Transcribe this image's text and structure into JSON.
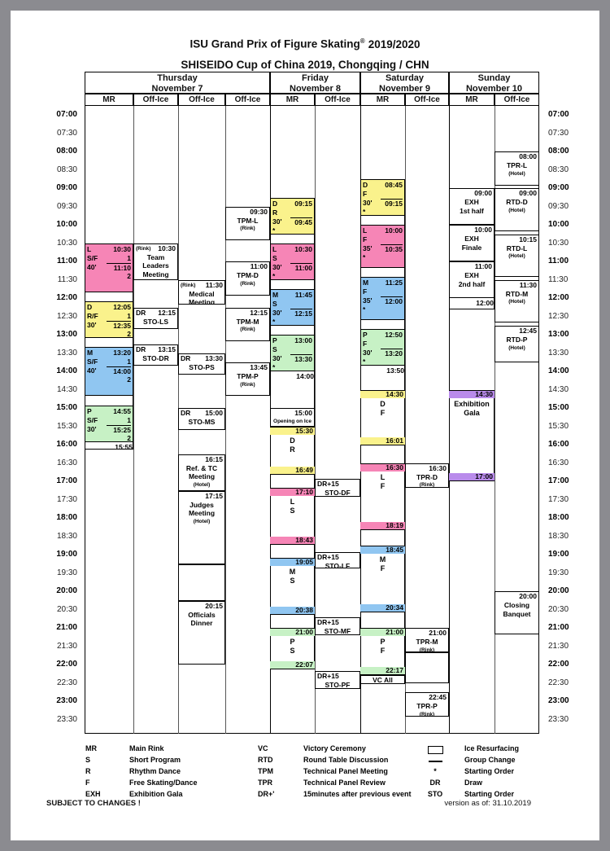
{
  "titles": {
    "line1_main": "ISU Grand Prix of Figure Skating",
    "line1_reg": "®",
    "line1_season": "2019/2020",
    "line2": "SHISEIDO Cup of China 2019, Chongqing / CHN"
  },
  "footer": {
    "left": "SUBJECT TO CHANGES !",
    "right": "version as of: 31.10.2019"
  },
  "colors": {
    "dance": "#faf28c",
    "ladies": "#f685b6",
    "men": "#90c6f1",
    "pairs": "#c7f1c5",
    "gala": "#b98beb"
  },
  "days": [
    {
      "name": "Thursday",
      "date": "November 7",
      "cols": [
        "MR",
        "Off-Ice",
        "Off-Ice",
        "Off-Ice"
      ]
    },
    {
      "name": "Friday",
      "date": "November 8",
      "cols": [
        "MR",
        "Off-Ice"
      ]
    },
    {
      "name": "Saturday",
      "date": "November 9",
      "cols": [
        "MR",
        "Off-Ice"
      ]
    },
    {
      "name": "Sunday",
      "date": "November 10",
      "cols": [
        "MR",
        "Off-Ice"
      ]
    }
  ],
  "time_labels": [
    "07:00",
    "07:30",
    "08:00",
    "08:30",
    "09:00",
    "09:30",
    "10:00",
    "10:30",
    "11:00",
    "11:30",
    "12:00",
    "12:30",
    "13:00",
    "13:30",
    "14:00",
    "14:30",
    "15:00",
    "15:30",
    "16:00",
    "16:30",
    "17:00",
    "17:30",
    "18:00",
    "18:30",
    "19:00",
    "19:30",
    "20:00",
    "20:30",
    "21:00",
    "21:30",
    "22:00",
    "22:30",
    "23:00",
    "23:30"
  ],
  "channels": [
    {
      "col": 0,
      "start": "10:30",
      "end": "16:08"
    },
    {
      "col": 4,
      "start": "09:15",
      "end": "22:07"
    },
    {
      "col": 6,
      "start": "08:45",
      "end": "22:31"
    },
    {
      "col": 8,
      "start": "09:00",
      "end": "12:18"
    },
    {
      "col": 8,
      "start": "14:30",
      "end": "17:00"
    }
  ],
  "events": [
    {
      "col": 0,
      "type": "practice",
      "start": "10:30",
      "end": "11:50",
      "color": "ladies",
      "rows": [
        {
          "l": "L",
          "r": "10:30"
        },
        {
          "l": "S/F",
          "r": "1"
        },
        {
          "l": "40'",
          "r": "11:10",
          "sep": true
        },
        {
          "l": "",
          "r": "2"
        }
      ]
    },
    {
      "col": 0,
      "type": "practice",
      "start": "12:05",
      "end": "13:05",
      "color": "dance",
      "rows": [
        {
          "l": "D",
          "r": "12:05"
        },
        {
          "l": "R/F",
          "r": "1"
        },
        {
          "l": "30'",
          "r": "12:35",
          "sep": true
        },
        {
          "l": "",
          "r": "2"
        }
      ]
    },
    {
      "col": 0,
      "type": "practice",
      "start": "13:20",
      "end": "14:40",
      "color": "men",
      "rows": [
        {
          "l": "M",
          "r": "13:20"
        },
        {
          "l": "S/F",
          "r": "1"
        },
        {
          "l": "40'",
          "r": "14:00",
          "sep": true
        },
        {
          "l": "",
          "r": "2"
        }
      ]
    },
    {
      "col": 0,
      "type": "practice",
      "start": "14:55",
      "end": "15:55",
      "color": "pairs",
      "rows": [
        {
          "l": "P",
          "r": "14:55"
        },
        {
          "l": "S/F",
          "r": "1"
        },
        {
          "l": "30'",
          "r": "15:25",
          "sep": true
        },
        {
          "l": "",
          "r": "2"
        }
      ]
    },
    {
      "col": 0,
      "type": "endlabel",
      "start": "15:55",
      "label": "15:55"
    },
    {
      "col": 1,
      "type": "box",
      "start": "10:30",
      "end": "11:30",
      "hdr_small": "(Rink)",
      "time": "10:30",
      "lines": [
        "Team",
        "Leaders",
        "Meeting"
      ]
    },
    {
      "col": 1,
      "type": "box",
      "start": "12:15",
      "end": "12:50",
      "hdr_left": "DR",
      "time": "12:15",
      "lines": [
        "STO-LS"
      ]
    },
    {
      "col": 1,
      "type": "box",
      "start": "13:15",
      "end": "13:50",
      "hdr_left": "DR",
      "time": "13:15",
      "lines": [
        "STO-DR"
      ]
    },
    {
      "col": 2,
      "type": "box",
      "start": "11:30",
      "end": "12:10",
      "hdr_small": "(Rink)",
      "time": "11:30",
      "lines": [
        "Medical",
        "Meeting"
      ]
    },
    {
      "col": 2,
      "type": "box",
      "start": "13:30",
      "end": "14:05",
      "hdr_left": "DR",
      "time": "13:30",
      "lines": [
        "STO-PS"
      ]
    },
    {
      "col": 2,
      "type": "box",
      "start": "15:00",
      "end": "15:35",
      "hdr_left": "DR",
      "time": "15:00",
      "lines": [
        "STO-MS"
      ]
    },
    {
      "col": 2,
      "type": "box",
      "start": "16:15",
      "end": "17:15",
      "time": "16:15",
      "lines": [
        "Ref. & TC",
        "Meeting"
      ],
      "foot": "(Hotel)"
    },
    {
      "col": 2,
      "type": "box",
      "start": "17:15",
      "end": "19:15",
      "time": "17:15",
      "lines": [
        "Judges",
        "Meeting"
      ],
      "foot": "(Hotel)"
    },
    {
      "col": 2,
      "type": "box",
      "start": "19:15",
      "end": "20:15"
    },
    {
      "col": 2,
      "type": "box",
      "start": "20:15",
      "end": "22:00",
      "time": "20:15",
      "lines": [
        "Officials",
        "Dinner"
      ]
    },
    {
      "col": 3,
      "type": "box",
      "start": "09:30",
      "end": "10:25",
      "time": "09:30",
      "lines": [
        "TPM-L"
      ],
      "foot": "(Rink)"
    },
    {
      "col": 3,
      "type": "box",
      "start": "11:00",
      "end": "11:55",
      "time": "11:00",
      "lines": [
        "TPM-D"
      ],
      "foot": "(Rink)"
    },
    {
      "col": 3,
      "type": "box",
      "start": "12:15",
      "end": "13:10",
      "time": "12:15",
      "lines": [
        "TPM-M"
      ],
      "foot": "(Rink)"
    },
    {
      "col": 3,
      "type": "box",
      "start": "13:45",
      "end": "14:40",
      "time": "13:45",
      "lines": [
        "TPM-P"
      ],
      "foot": "(Rink)"
    },
    {
      "col": 4,
      "type": "practice",
      "start": "09:15",
      "end": "10:15",
      "color": "dance",
      "rows": [
        {
          "l": "D",
          "r": "09:15"
        },
        {
          "l": "R",
          "r": ""
        },
        {
          "l": "30'",
          "r": "09:45",
          "sep": true
        },
        {
          "l": "*",
          "r": ""
        }
      ]
    },
    {
      "col": 4,
      "type": "practice",
      "start": "10:30",
      "end": "11:30",
      "color": "ladies",
      "rows": [
        {
          "l": "L",
          "r": "10:30"
        },
        {
          "l": "S",
          "r": ""
        },
        {
          "l": "30'",
          "r": "11:00",
          "sep": true
        },
        {
          "l": "*",
          "r": ""
        }
      ]
    },
    {
      "col": 4,
      "type": "practice",
      "start": "11:45",
      "end": "12:45",
      "color": "men",
      "rows": [
        {
          "l": "M",
          "r": "11:45"
        },
        {
          "l": "S",
          "r": ""
        },
        {
          "l": "30'",
          "r": "12:15",
          "sep": true
        },
        {
          "l": "*",
          "r": ""
        }
      ]
    },
    {
      "col": 4,
      "type": "practice",
      "start": "13:00",
      "end": "14:00",
      "color": "pairs",
      "rows": [
        {
          "l": "P",
          "r": "13:00"
        },
        {
          "l": "S",
          "r": ""
        },
        {
          "l": "30'",
          "r": "13:30",
          "sep": true
        },
        {
          "l": "*",
          "r": ""
        }
      ]
    },
    {
      "col": 4,
      "type": "endlabel",
      "start": "14:00",
      "label": "14:00"
    },
    {
      "col": 4,
      "type": "box",
      "start": "15:00",
      "end": "15:30",
      "time": "15:00",
      "foot": "Opening on Ice"
    },
    {
      "col": 4,
      "type": "comp",
      "start": "15:30",
      "end": "16:49",
      "color": "dance",
      "t1": "15:30",
      "t2": "16:49",
      "mid": [
        "D",
        "R"
      ]
    },
    {
      "col": 4,
      "type": "comp",
      "start": "17:10",
      "end": "18:43",
      "color": "ladies",
      "t1": "17:10",
      "t2": "18:43",
      "mid": [
        "L",
        "S"
      ]
    },
    {
      "col": 4,
      "type": "comp",
      "start": "19:05",
      "end": "20:38",
      "color": "men",
      "t1": "19:05",
      "t2": "20:38",
      "mid": [
        "M",
        "S"
      ]
    },
    {
      "col": 4,
      "type": "comp",
      "start": "21:00",
      "end": "22:07",
      "color": "pairs",
      "t1": "21:00",
      "t2": "22:07",
      "mid": [
        "P",
        "S"
      ]
    },
    {
      "col": 5,
      "type": "box",
      "start": "16:55",
      "end": "17:25",
      "hdr_left": "DR+15",
      "lines": [
        "STO-DF"
      ]
    },
    {
      "col": 5,
      "type": "box",
      "start": "18:55",
      "end": "19:22",
      "hdr_left": "DR+15",
      "lines": [
        "STO-LF"
      ]
    },
    {
      "col": 5,
      "type": "box",
      "start": "20:42",
      "end": "21:12",
      "hdr_left": "DR+15",
      "lines": [
        "STO-MF"
      ]
    },
    {
      "col": 5,
      "type": "box",
      "start": "22:10",
      "end": "22:40",
      "hdr_left": "DR+15",
      "lines": [
        "STO-PF"
      ]
    },
    {
      "col": 6,
      "type": "practice",
      "start": "08:45",
      "end": "09:45",
      "color": "dance",
      "rows": [
        {
          "l": "D",
          "r": "08:45"
        },
        {
          "l": "F",
          "r": ""
        },
        {
          "l": "30'",
          "r": "09:15",
          "sep": true
        },
        {
          "l": "*",
          "r": ""
        }
      ]
    },
    {
      "col": 6,
      "type": "practice",
      "start": "10:00",
      "end": "11:10",
      "color": "ladies",
      "rows": [
        {
          "l": "L",
          "r": "10:00"
        },
        {
          "l": "F",
          "r": ""
        },
        {
          "l": "35'",
          "r": "10:35",
          "sep": true
        },
        {
          "l": "*",
          "r": ""
        }
      ]
    },
    {
      "col": 6,
      "type": "practice",
      "start": "11:25",
      "end": "12:35",
      "color": "men",
      "rows": [
        {
          "l": "M",
          "r": "11:25"
        },
        {
          "l": "F",
          "r": ""
        },
        {
          "l": "35'",
          "r": "12:00",
          "sep": true
        },
        {
          "l": "*",
          "r": ""
        }
      ]
    },
    {
      "col": 6,
      "type": "practice",
      "start": "12:50",
      "end": "13:50",
      "color": "pairs",
      "rows": [
        {
          "l": "P",
          "r": "12:50"
        },
        {
          "l": "F",
          "r": ""
        },
        {
          "l": "30'",
          "r": "13:20",
          "sep": true
        },
        {
          "l": "*",
          "r": ""
        }
      ]
    },
    {
      "col": 6,
      "type": "endlabel",
      "start": "13:50",
      "label": "13:50"
    },
    {
      "col": 6,
      "type": "comp",
      "start": "14:30",
      "end": "16:01",
      "color": "dance",
      "t1": "14:30",
      "t2": "16:01",
      "mid": [
        "D",
        "F"
      ]
    },
    {
      "col": 6,
      "type": "comp",
      "start": "16:30",
      "end": "18:19",
      "color": "ladies",
      "t1": "16:30",
      "t2": "18:19",
      "mid": [
        "L",
        "F"
      ]
    },
    {
      "col": 6,
      "type": "comp",
      "start": "18:45",
      "end": "20:34",
      "color": "men",
      "t1": "18:45",
      "t2": "20:34",
      "mid": [
        "M",
        "F"
      ]
    },
    {
      "col": 6,
      "type": "comp",
      "start": "21:00",
      "end": "22:17",
      "color": "pairs",
      "t1": "21:00",
      "t2": "22:17",
      "mid": [
        "P",
        "F"
      ]
    },
    {
      "col": 6,
      "type": "box",
      "start": "22:17",
      "end": "22:31",
      "lines": [
        "VC All"
      ]
    },
    {
      "col": 7,
      "type": "box",
      "start": "16:30",
      "end": "17:10",
      "time": "16:30",
      "lines": [
        "TPR-D"
      ],
      "foot": "(Rink)"
    },
    {
      "col": 7,
      "type": "box",
      "start": "21:00",
      "end": "21:40",
      "time": "21:00",
      "lines": [
        "TPR-M"
      ],
      "foot": "(Rink)"
    },
    {
      "col": 7,
      "type": "box",
      "start": "21:40",
      "end": "22:30"
    },
    {
      "col": 7,
      "type": "box",
      "start": "22:45",
      "end": "23:25",
      "time": "22:45",
      "lines": [
        "TPR-P"
      ],
      "foot": "(Rink)"
    },
    {
      "col": 8,
      "type": "box",
      "start": "09:00",
      "end": "10:00",
      "time": "09:00",
      "lines": [
        "EXH",
        "1st half"
      ]
    },
    {
      "col": 8,
      "type": "box",
      "start": "10:00",
      "end": "11:00",
      "time": "10:00",
      "lines": [
        "EXH",
        "Finale"
      ]
    },
    {
      "col": 8,
      "type": "box",
      "start": "11:00",
      "end": "12:00",
      "time": "11:00",
      "lines": [
        "EXH",
        "2nd half"
      ]
    },
    {
      "col": 8,
      "type": "endlabel",
      "start": "12:00",
      "label": "12:00"
    },
    {
      "col": 8,
      "type": "comp",
      "start": "14:30",
      "end": "17:00",
      "color": "gala",
      "t1": "14:30",
      "t2": "17:00",
      "mid": [
        "Exhibition",
        "Gala"
      ]
    },
    {
      "col": 9,
      "type": "box",
      "start": "08:00",
      "end": "08:55",
      "time": "08:00",
      "lines": [
        "TPR-L"
      ],
      "foot": "(Hotel)"
    },
    {
      "col": 9,
      "type": "box",
      "start": "09:00",
      "end": "10:10",
      "time": "09:00",
      "lines": [
        "RTD-D"
      ],
      "foot": "(Hotel)"
    },
    {
      "col": 9,
      "type": "box",
      "start": "10:15",
      "end": "11:25",
      "time": "10:15",
      "lines": [
        "RTD-L"
      ],
      "foot": "(Hotel)"
    },
    {
      "col": 9,
      "type": "box",
      "start": "11:30",
      "end": "12:40",
      "time": "11:30",
      "lines": [
        "RTD-M"
      ],
      "foot": "(Hotel)"
    },
    {
      "col": 9,
      "type": "box",
      "start": "12:45",
      "end": "13:45",
      "time": "12:45",
      "lines": [
        "RTD-P"
      ],
      "foot": "(Hotel)"
    },
    {
      "col": 9,
      "type": "box",
      "start": "20:00",
      "end": "21:10",
      "time": "20:00",
      "lines": [
        "Closing",
        "Banquet"
      ]
    }
  ],
  "legend": {
    "groups": [
      [
        {
          "term": "MR",
          "label": "Main Rink"
        },
        {
          "term": "S",
          "label": "Short Program"
        },
        {
          "term": "R",
          "label": "Rhythm Dance"
        },
        {
          "term": "F",
          "label": "Free Skating/Dance"
        },
        {
          "term": "EXH",
          "label": "Exhibition Gala"
        }
      ],
      [
        {
          "term": "VC",
          "label": "Victory Ceremony"
        },
        {
          "term": "RTD",
          "label": "Round Table Discussion"
        },
        {
          "term": "TPM",
          "label": "Technical Panel Meeting"
        },
        {
          "term": "TPR",
          "label": "Technical Panel Review"
        },
        {
          "term": "DR+'",
          "label": "15minutes after previous event"
        }
      ],
      [
        {
          "sym": "rect",
          "term": "",
          "label": "Ice Resurfacing"
        },
        {
          "sym": "line",
          "term": "",
          "label": "Group Change"
        },
        {
          "term": "*",
          "label": "Starting Order"
        },
        {
          "term": "DR",
          "label": "Draw"
        },
        {
          "term": "STO",
          "label": "Starting Order"
        }
      ]
    ]
  }
}
